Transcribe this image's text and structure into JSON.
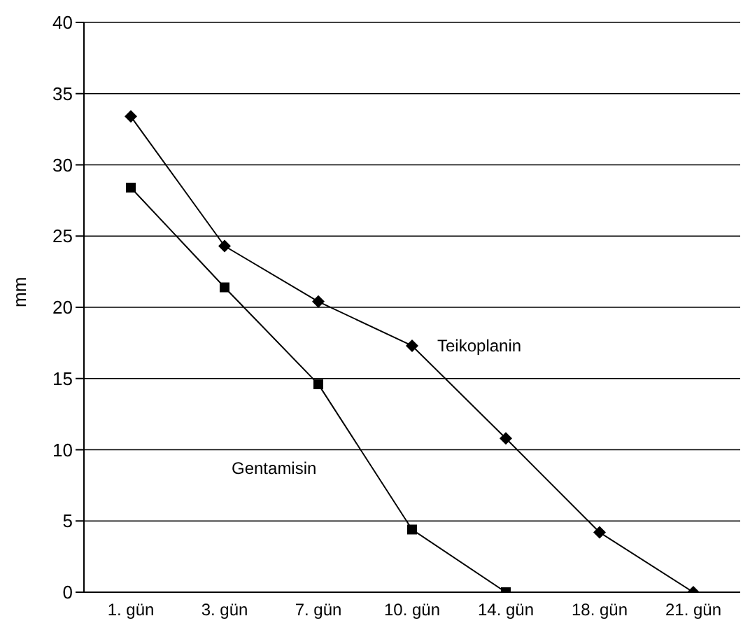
{
  "chart_data": {
    "type": "line",
    "ylabel": "mm",
    "categories": [
      "1. gün",
      "3. gün",
      "7. gün",
      "10. gün",
      "14. gün",
      "18. gün",
      "21. gün"
    ],
    "ylim": [
      0,
      40
    ],
    "yticks": [
      0,
      5,
      10,
      15,
      20,
      25,
      30,
      35,
      40
    ],
    "grid": "y",
    "legend": false,
    "series": [
      {
        "name": "Teikoplanin",
        "color": "#000000",
        "marker": "diamond",
        "values": [
          33.4,
          24.3,
          20.4,
          17.3,
          10.8,
          4.2,
          0
        ]
      },
      {
        "name": "Gentamisin",
        "color": "#000000",
        "marker": "square",
        "values": [
          28.4,
          21.4,
          14.6,
          4.4,
          0,
          null,
          null
        ]
      }
    ]
  }
}
